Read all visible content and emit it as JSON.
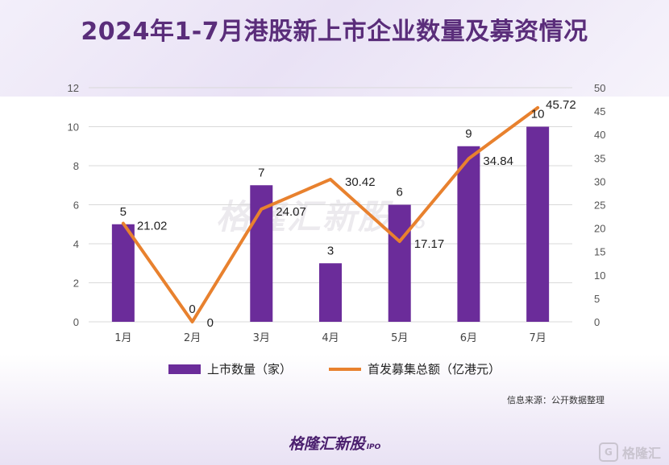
{
  "title": "2024年1-7月港股新上市企业数量及募资情况",
  "watermark": {
    "main": "格隆汇新股",
    "sub": "IPO"
  },
  "chart_data": {
    "type": "bar+line",
    "categories": [
      "1月",
      "2月",
      "3月",
      "4月",
      "5月",
      "6月",
      "7月"
    ],
    "series": [
      {
        "name": "上市数量（家）",
        "type": "bar",
        "axis": "left",
        "values": [
          5,
          0,
          7,
          3,
          6,
          9,
          10
        ],
        "color": "#6b2c9a"
      },
      {
        "name": "首发募集总额（亿港元）",
        "type": "line",
        "axis": "right",
        "values": [
          21.02,
          0,
          24.07,
          30.42,
          17.17,
          34.84,
          45.72
        ],
        "color": "#e8812e"
      }
    ],
    "left_axis": {
      "min": 0,
      "max": 12,
      "step": 2,
      "ticks": [
        "0",
        "2",
        "4",
        "6",
        "8",
        "10",
        "12"
      ]
    },
    "right_axis": {
      "min": 0,
      "max": 50,
      "step": 5,
      "ticks": [
        "0",
        "5",
        "10",
        "15",
        "20",
        "25",
        "30",
        "35",
        "40",
        "45",
        "50"
      ]
    },
    "bar_labels": [
      "5",
      "0",
      "7",
      "3",
      "6",
      "9",
      "10"
    ],
    "line_labels": [
      "21.02",
      "0",
      "24.07",
      "30.42",
      "17.17",
      "34.84",
      "45.72"
    ],
    "grid": true,
    "legend_position": "bottom"
  },
  "legend": {
    "bar_label": "上市数量（家）",
    "line_label": "首发募集总额（亿港元）"
  },
  "source": "信息来源：公开数据整理",
  "brand": {
    "main": "格隆汇新股",
    "sub": "IPO"
  },
  "corner_logo": {
    "mark": "G",
    "text": "格隆汇"
  }
}
